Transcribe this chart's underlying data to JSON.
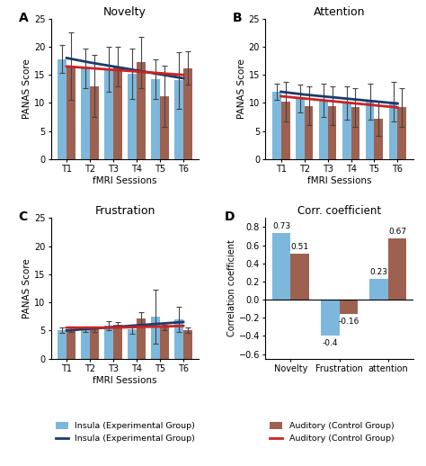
{
  "sessions": [
    "T1",
    "T2",
    "T3",
    "T4",
    "T5",
    "T6"
  ],
  "novelty": {
    "blue_bars": [
      17.8,
      16.2,
      16.0,
      15.2,
      14.2,
      14.0
    ],
    "brown_bars": [
      16.5,
      13.0,
      16.5,
      17.2,
      11.2,
      16.2
    ],
    "blue_err": [
      2.5,
      3.5,
      4.0,
      4.5,
      3.5,
      5.0
    ],
    "brown_err": [
      6.0,
      5.5,
      3.5,
      4.5,
      5.5,
      3.0
    ],
    "blue_trend": [
      18.0,
      17.2,
      16.5,
      15.8,
      15.1,
      14.4
    ],
    "red_trend": [
      16.5,
      16.2,
      15.9,
      15.6,
      15.3,
      15.0
    ],
    "title": "Novelty",
    "label": "A"
  },
  "attention": {
    "blue_bars": [
      12.0,
      10.8,
      10.5,
      10.0,
      10.2,
      10.2
    ],
    "brown_bars": [
      10.2,
      9.5,
      9.5,
      9.2,
      7.2,
      9.2
    ],
    "blue_err": [
      1.5,
      2.5,
      3.0,
      3.0,
      3.2,
      3.5
    ],
    "brown_err": [
      3.5,
      3.5,
      3.5,
      3.5,
      3.0,
      3.5
    ],
    "blue_trend": [
      12.0,
      11.5,
      11.1,
      10.7,
      10.3,
      9.9
    ],
    "red_trend": [
      11.2,
      10.8,
      10.4,
      10.0,
      9.6,
      9.2
    ],
    "title": "Attention",
    "label": "B"
  },
  "frustration": {
    "blue_bars": [
      5.1,
      5.2,
      5.8,
      5.2,
      7.5,
      7.0
    ],
    "brown_bars": [
      5.2,
      5.2,
      6.0,
      7.2,
      5.5,
      5.0
    ],
    "blue_err": [
      0.5,
      0.5,
      0.8,
      0.8,
      4.8,
      2.2
    ],
    "brown_err": [
      0.5,
      0.5,
      0.5,
      1.0,
      0.5,
      0.5
    ],
    "blue_trend": [
      5.0,
      5.3,
      5.6,
      5.9,
      6.2,
      6.5
    ],
    "red_trend": [
      5.5,
      5.5,
      5.5,
      5.6,
      5.7,
      5.8
    ],
    "title": "Frustration",
    "label": "C"
  },
  "corr": {
    "categories": [
      "Novelty",
      "Frustration",
      "attention"
    ],
    "blue_vals": [
      0.73,
      -0.4,
      0.23
    ],
    "brown_vals": [
      0.51,
      -0.16,
      0.67
    ],
    "title": "Corr. coefficient",
    "label": "D",
    "ylim": [
      -0.65,
      0.9
    ],
    "yticks": [
      -0.6,
      -0.4,
      -0.2,
      0.0,
      0.2,
      0.4,
      0.6,
      0.8
    ]
  },
  "blue_bar_color": "#7DB8DC",
  "brown_bar_color": "#9E6150",
  "blue_line_color": "#1C3A6B",
  "red_line_color": "#CC2222",
  "ylabel": "PANAS Score",
  "xlabel": "fMRI Sessions",
  "ylim_main": [
    0,
    25
  ],
  "yticks_main": [
    0,
    5,
    10,
    15,
    20,
    25
  ],
  "legend_blue": [
    {
      "label": "Insula (Experimental Group)",
      "type": "bar"
    },
    {
      "label": "Insula (Experimental Group)",
      "type": "line"
    }
  ],
  "legend_brown": [
    {
      "label": "Auditory (Control Group)",
      "type": "bar"
    },
    {
      "label": "Auditory (Control Group)",
      "type": "line"
    }
  ]
}
